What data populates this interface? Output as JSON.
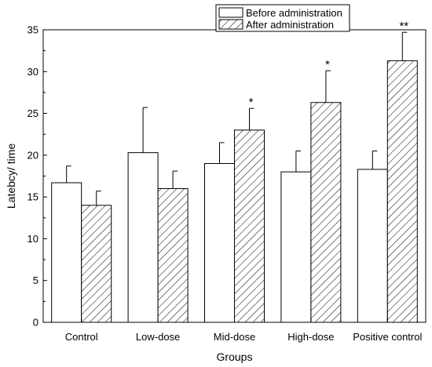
{
  "chart_data": {
    "type": "bar",
    "xlabel": "Groups",
    "ylabel": "Latebcy/ time",
    "ylim": [
      0,
      35
    ],
    "yticks": [
      0,
      5,
      10,
      15,
      20,
      25,
      30,
      35
    ],
    "categories": [
      "Control",
      "Low-dose",
      "Mid-dose",
      "High-dose",
      "Positive control"
    ],
    "legend_position": "top-right",
    "series": [
      {
        "name": "Before administration",
        "pattern": "solid-white",
        "values": [
          16.7,
          20.3,
          19.0,
          18.0,
          18.3
        ],
        "errors": [
          2.0,
          5.4,
          2.5,
          2.5,
          2.2
        ]
      },
      {
        "name": "After administration",
        "pattern": "diagonal-hatch",
        "values": [
          14.0,
          16.0,
          23.0,
          26.3,
          31.3
        ],
        "errors": [
          1.7,
          2.1,
          2.6,
          3.8,
          3.4
        ]
      }
    ],
    "annotations": [
      {
        "category": "Mid-dose",
        "series": "After administration",
        "text": "*"
      },
      {
        "category": "High-dose",
        "series": "After administration",
        "text": "*"
      },
      {
        "category": "Positive control",
        "series": "After administration",
        "text": "**"
      }
    ]
  }
}
